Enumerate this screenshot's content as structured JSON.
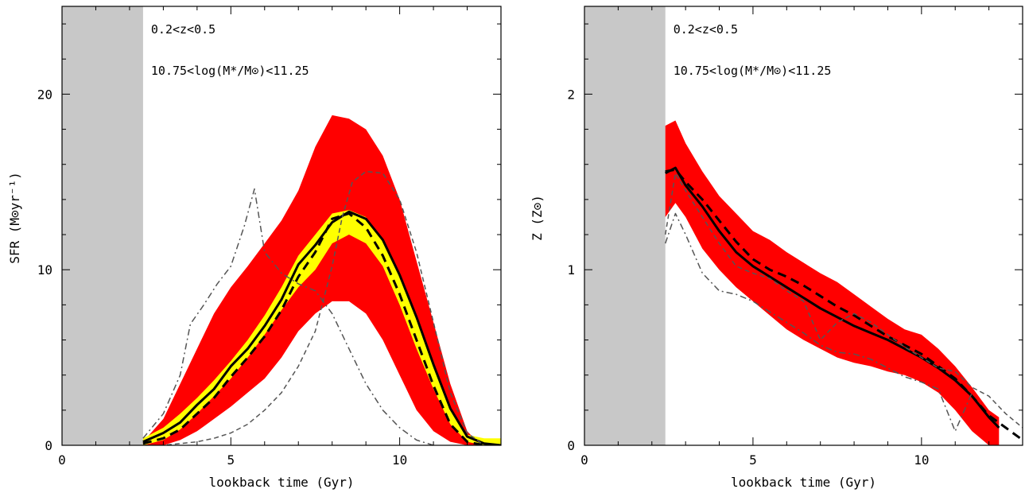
{
  "chart_data": [
    {
      "type": "line",
      "panel": "left",
      "xlabel": "lookback time (Gyr)",
      "ylabel": "SFR (M⊙yr⁻¹)",
      "xlim": [
        0,
        13
      ],
      "ylim": [
        0,
        25
      ],
      "x_ticks": [
        0,
        5,
        10
      ],
      "y_ticks": [
        0,
        10,
        20
      ],
      "shaded_region": [
        0,
        2.4
      ],
      "annotations": [
        "0.2<z<0.5",
        "10.75<log(M*/M⊙)<11.25"
      ],
      "bands": [
        {
          "color": "#ff0000",
          "x": [
            2.4,
            3.0,
            3.5,
            4.0,
            4.5,
            5.0,
            5.5,
            6.0,
            6.5,
            7.0,
            7.5,
            8.0,
            8.5,
            9.0,
            9.5,
            10.0,
            10.5,
            11.0,
            11.5,
            12.0,
            12.4
          ],
          "upper": [
            0.2,
            1.5,
            3.5,
            5.5,
            7.5,
            9.0,
            10.2,
            11.5,
            12.8,
            14.5,
            17.0,
            18.8,
            18.6,
            18.0,
            16.5,
            14.0,
            10.5,
            7.0,
            3.5,
            0.8,
            0.0
          ],
          "lower": [
            0.0,
            0.0,
            0.3,
            0.8,
            1.5,
            2.2,
            3.0,
            3.8,
            5.0,
            6.5,
            7.5,
            8.2,
            8.2,
            7.5,
            6.0,
            4.0,
            2.0,
            0.8,
            0.2,
            0.0,
            0.0
          ]
        },
        {
          "color": "#ffff00",
          "x": [
            2.4,
            3.0,
            3.5,
            4.0,
            4.5,
            5.0,
            5.5,
            6.0,
            6.5,
            7.0,
            7.5,
            8.0,
            8.5,
            9.0,
            9.5,
            10.0,
            10.5,
            11.0,
            11.5,
            12.0,
            12.5,
            13.0
          ],
          "upper": [
            0.4,
            1.0,
            1.8,
            2.7,
            3.7,
            4.8,
            6.0,
            7.4,
            9.0,
            10.8,
            12.0,
            13.2,
            13.4,
            13.0,
            11.7,
            9.7,
            7.3,
            4.7,
            2.2,
            0.6,
            0.4,
            0.4
          ],
          "lower": [
            0.0,
            0.3,
            0.9,
            1.8,
            2.8,
            3.8,
            5.0,
            6.3,
            7.7,
            9.0,
            10.0,
            11.5,
            12.0,
            11.5,
            10.2,
            8.0,
            5.5,
            3.2,
            1.2,
            0.2,
            0.0,
            0.0
          ]
        }
      ],
      "series": [
        {
          "style": "solid",
          "x": [
            2.4,
            3.0,
            3.5,
            4.0,
            4.5,
            5.0,
            5.5,
            6.0,
            6.5,
            7.0,
            7.5,
            8.0,
            8.5,
            9.0,
            9.5,
            10.0,
            10.5,
            11.0,
            11.5,
            12.0,
            12.5,
            13.0
          ],
          "y": [
            0.2,
            0.7,
            1.3,
            2.3,
            3.2,
            4.5,
            5.5,
            6.8,
            8.3,
            10.3,
            11.4,
            12.7,
            13.3,
            12.9,
            11.7,
            9.7,
            7.3,
            4.6,
            2.1,
            0.5,
            0.1,
            0.0
          ]
        },
        {
          "style": "dashed",
          "x": [
            2.4,
            3.0,
            3.5,
            4.0,
            4.5,
            5.0,
            5.5,
            6.0,
            6.5,
            7.0,
            7.5,
            8.0,
            8.5,
            9.0,
            9.5,
            10.0,
            10.5,
            11.0,
            11.5,
            12.0,
            12.5,
            13.0
          ],
          "y": [
            0.1,
            0.4,
            0.9,
            1.8,
            2.7,
            3.9,
            5.0,
            6.2,
            7.7,
            9.6,
            11.0,
            12.9,
            13.2,
            12.4,
            10.8,
            8.6,
            6.0,
            3.4,
            1.2,
            0.2,
            0.0,
            0.0
          ]
        },
        {
          "style": "dashdot",
          "x": [
            2.4,
            3.0,
            3.5,
            3.8,
            4.2,
            4.6,
            5.0,
            5.4,
            5.7,
            6.0,
            6.5,
            7.0,
            7.5,
            8.0,
            8.5,
            9.0,
            9.5,
            10.0,
            10.5,
            11.0
          ],
          "y": [
            0.4,
            1.8,
            4.0,
            6.9,
            8.0,
            9.2,
            10.2,
            12.5,
            14.6,
            11.0,
            9.8,
            9.2,
            8.8,
            7.5,
            5.5,
            3.5,
            2.0,
            1.0,
            0.3,
            0.0
          ]
        },
        {
          "style": "grey-dashed",
          "x": [
            2.4,
            3.0,
            3.5,
            4.0,
            4.5,
            5.0,
            5.5,
            6.0,
            6.5,
            7.0,
            7.5,
            8.0,
            8.3,
            8.6,
            9.0,
            9.5,
            10.0,
            10.5,
            11.0,
            11.5,
            12.0,
            12.5
          ],
          "y": [
            0.0,
            0.0,
            0.1,
            0.2,
            0.4,
            0.7,
            1.2,
            2.0,
            3.0,
            4.5,
            6.5,
            10.2,
            13.0,
            15.0,
            15.6,
            15.5,
            14.0,
            11.0,
            7.0,
            3.0,
            0.7,
            0.0
          ]
        }
      ]
    },
    {
      "type": "line",
      "panel": "right",
      "xlabel": "lookback time (Gyr)",
      "ylabel": "Z (Z⊙)",
      "xlim": [
        0,
        13
      ],
      "ylim": [
        0,
        2.5
      ],
      "x_ticks": [
        0,
        5,
        10
      ],
      "y_ticks": [
        0,
        1,
        2
      ],
      "shaded_region": [
        0,
        2.4
      ],
      "annotations": [
        "0.2<z<0.5",
        "10.75<log(M*/M⊙)<11.25"
      ],
      "bands": [
        {
          "color": "#ff0000",
          "x": [
            2.4,
            2.7,
            3.0,
            3.5,
            4.0,
            4.5,
            5.0,
            5.5,
            6.0,
            6.5,
            7.0,
            7.5,
            8.0,
            8.5,
            9.0,
            9.5,
            10.0,
            10.5,
            11.0,
            11.5,
            12.0,
            12.3
          ],
          "upper": [
            1.82,
            1.85,
            1.72,
            1.56,
            1.42,
            1.32,
            1.22,
            1.17,
            1.1,
            1.04,
            0.98,
            0.93,
            0.86,
            0.79,
            0.72,
            0.66,
            0.63,
            0.55,
            0.45,
            0.33,
            0.2,
            0.16
          ],
          "lower": [
            1.3,
            1.38,
            1.3,
            1.12,
            1.0,
            0.9,
            0.82,
            0.74,
            0.66,
            0.6,
            0.55,
            0.5,
            0.47,
            0.45,
            0.42,
            0.4,
            0.36,
            0.3,
            0.2,
            0.08,
            0.0,
            0.0
          ]
        }
      ],
      "series": [
        {
          "style": "solid",
          "x": [
            2.4,
            2.7,
            3.0,
            3.5,
            4.0,
            4.5,
            5.0,
            5.5,
            6.0,
            6.5,
            7.0,
            7.5,
            8.0,
            8.5,
            9.0,
            9.5,
            10.0,
            10.5,
            11.0,
            11.5,
            12.0,
            12.3
          ],
          "y": [
            1.55,
            1.58,
            1.48,
            1.36,
            1.22,
            1.1,
            1.02,
            0.96,
            0.9,
            0.84,
            0.78,
            0.73,
            0.68,
            0.64,
            0.6,
            0.55,
            0.5,
            0.44,
            0.37,
            0.28,
            0.16,
            0.1
          ]
        },
        {
          "style": "dashed",
          "x": [
            2.4,
            2.7,
            3.0,
            3.5,
            4.0,
            4.5,
            5.0,
            5.5,
            6.0,
            6.5,
            7.0,
            7.5,
            8.0,
            8.5,
            9.0,
            9.5,
            10.0,
            10.5,
            11.0,
            11.5,
            12.0,
            12.5,
            13.0
          ],
          "y": [
            1.56,
            1.57,
            1.5,
            1.4,
            1.28,
            1.16,
            1.06,
            1.0,
            0.96,
            0.91,
            0.85,
            0.79,
            0.74,
            0.68,
            0.62,
            0.57,
            0.52,
            0.45,
            0.38,
            0.28,
            0.17,
            0.1,
            0.03
          ]
        },
        {
          "style": "dashdot",
          "x": [
            2.4,
            2.7,
            3.0,
            3.5,
            4.0,
            4.5,
            5.0,
            5.5,
            6.0,
            6.5,
            7.0,
            7.5,
            8.0,
            8.5,
            9.0,
            9.5,
            10.0,
            10.5,
            11.0,
            11.5
          ],
          "y": [
            1.15,
            1.32,
            1.2,
            0.98,
            0.88,
            0.86,
            0.82,
            0.76,
            0.7,
            0.64,
            0.57,
            0.53,
            0.52,
            0.49,
            0.44,
            0.39,
            0.36,
            0.32,
            0.08,
            0.3
          ]
        },
        {
          "style": "grey-dashed",
          "x": [
            2.4,
            2.7,
            3.0,
            3.5,
            4.0,
            4.5,
            5.0,
            5.5,
            6.0,
            6.5,
            7.0,
            7.5,
            8.0,
            8.5,
            9.0,
            9.5,
            10.0,
            10.5,
            11.0,
            11.5,
            12.0,
            12.5,
            13.0
          ],
          "y": [
            1.2,
            1.55,
            1.45,
            1.3,
            1.15,
            1.02,
            0.98,
            0.95,
            0.88,
            0.82,
            0.6,
            0.7,
            0.75,
            0.7,
            0.63,
            0.56,
            0.5,
            0.44,
            0.42,
            0.33,
            0.28,
            0.18,
            0.1
          ]
        }
      ]
    }
  ]
}
